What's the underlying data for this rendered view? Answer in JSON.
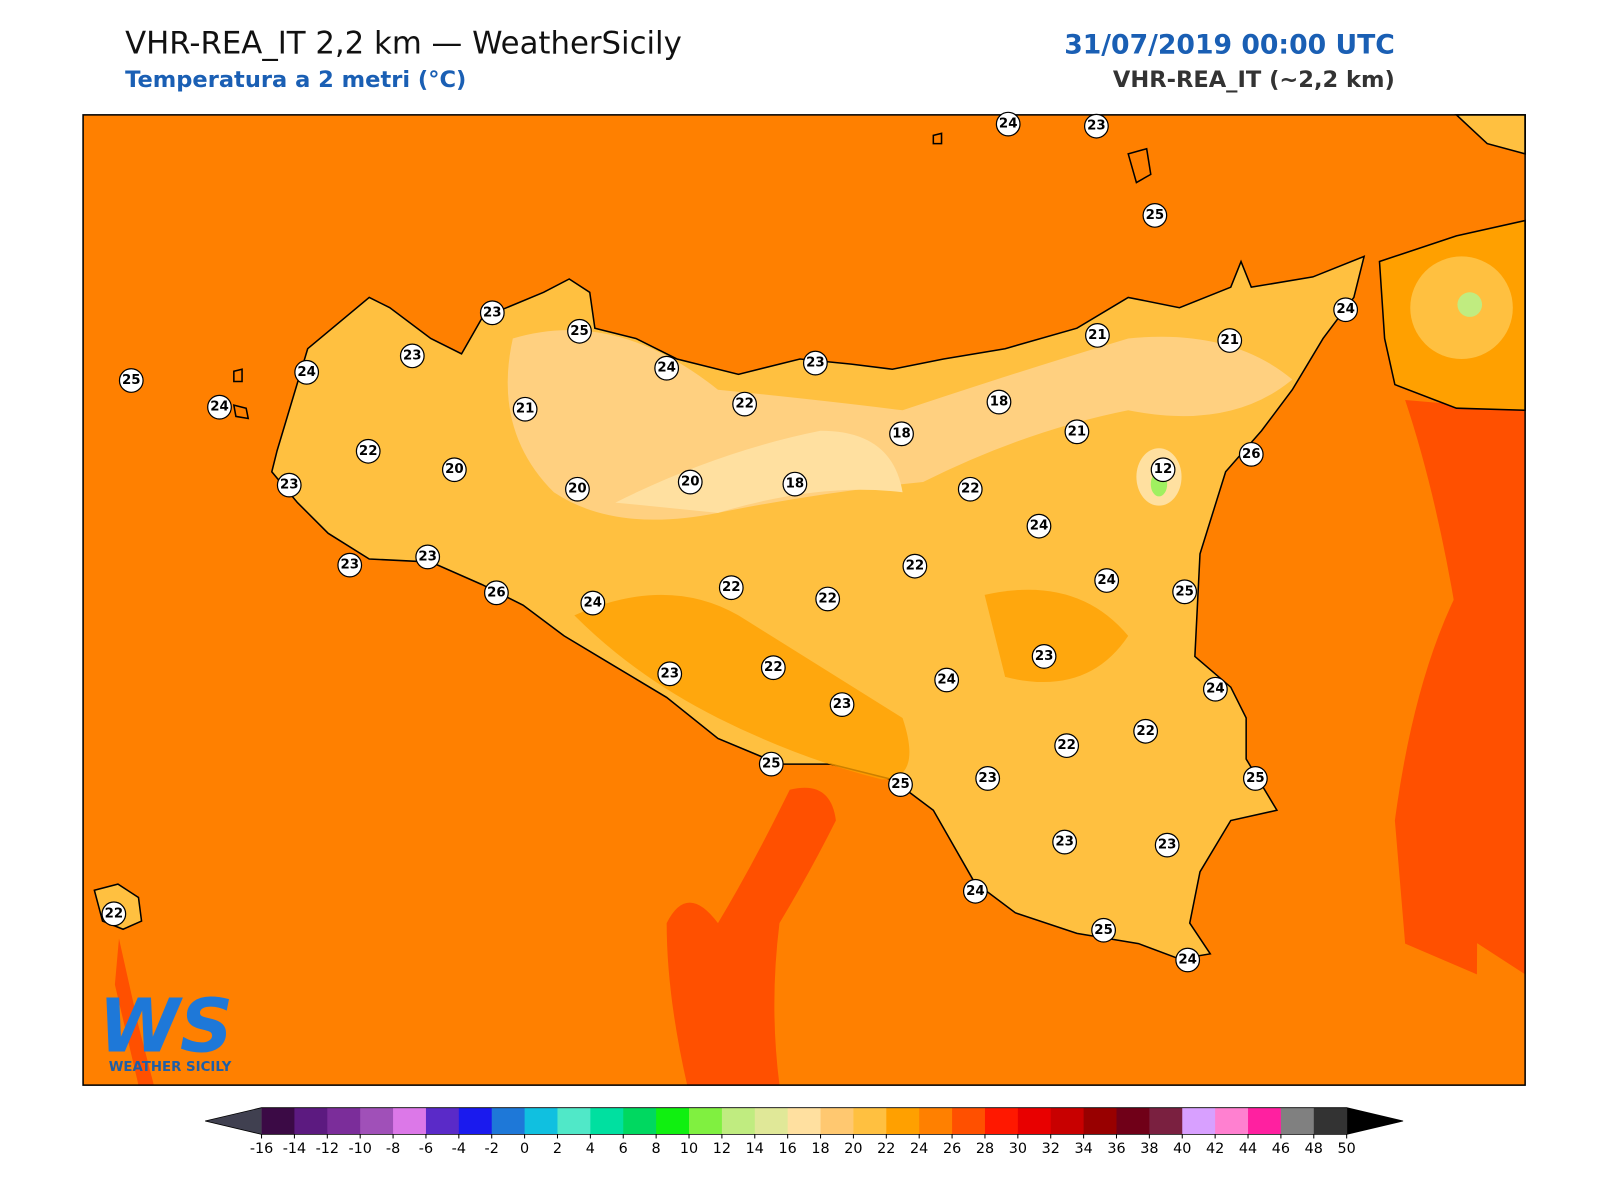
{
  "header": {
    "title": "VHR-REA_IT 2,2 km — WeatherSicily",
    "subtitle": "Temperatura a 2 metri (°C)",
    "datetime": "31/07/2019 00:00 UTC",
    "model": "VHR-REA_IT (~2,2 km)"
  },
  "stations": {
    "values": [
      24,
      23,
      25,
      25,
      24,
      24,
      23,
      23,
      25,
      24,
      21,
      22,
      20,
      23,
      20,
      20,
      22,
      23,
      18,
      18,
      18,
      21,
      21,
      24,
      21,
      26,
      12,
      22,
      24,
      23,
      23,
      26,
      24,
      22,
      22,
      22,
      24,
      25,
      23,
      23,
      22,
      24,
      23,
      24,
      22,
      22,
      23,
      25,
      25,
      25,
      23,
      23,
      24,
      25,
      24,
      22
    ]
  },
  "colorbar": {
    "ticks": [
      -16,
      -14,
      -12,
      -10,
      -8,
      -6,
      -4,
      -2,
      0,
      2,
      4,
      6,
      8,
      10,
      12,
      14,
      16,
      18,
      20,
      22,
      24,
      26,
      28,
      30,
      32,
      34,
      36,
      38,
      40,
      42,
      44,
      46,
      48,
      50
    ],
    "colors": [
      "#3b0a45",
      "#5c1a80",
      "#7b2d9a",
      "#a050b8",
      "#dc78e8",
      "#5a2ac8",
      "#1a1aee",
      "#1e78d8",
      "#10c0e0",
      "#50e8c8",
      "#00e0a0",
      "#00d860",
      "#10f010",
      "#80f040",
      "#c0ec80",
      "#e0e898",
      "#ffe0a0",
      "#ffc870",
      "#ffc040",
      "#ffa000",
      "#ff8000",
      "#ff5000",
      "#ff1800",
      "#e80000",
      "#c80000",
      "#980000",
      "#700018",
      "#7a2040",
      "#d8a0ff",
      "#ff80d0",
      "#ff20a0",
      "#808080",
      "#333333"
    ]
  },
  "logo": {
    "letters": "WS",
    "name": "WEATHER SICILY"
  }
}
